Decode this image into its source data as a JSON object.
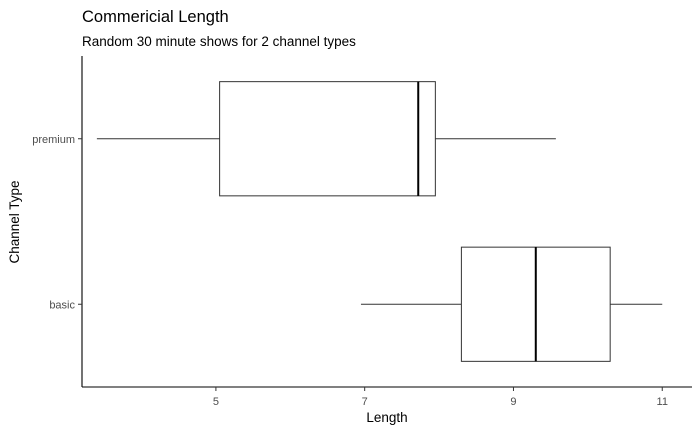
{
  "chart_data": {
    "type": "boxplot",
    "title": "Commericial Length",
    "subtitle": "Random 30 minute shows for 2 channel types",
    "xlabel": "Length",
    "ylabel": "Channel Type",
    "xlim": [
      3.2,
      11.4
    ],
    "xticks": [
      5,
      7,
      9,
      11
    ],
    "categories": [
      "premium",
      "basic"
    ],
    "boxes": [
      {
        "category": "premium",
        "min": 3.4,
        "q1": 5.05,
        "median": 7.72,
        "q3": 7.95,
        "max": 9.57
      },
      {
        "category": "basic",
        "min": 6.95,
        "q1": 8.3,
        "median": 9.3,
        "q3": 10.3,
        "max": 11.0
      }
    ],
    "grid": false,
    "legend": "none"
  }
}
